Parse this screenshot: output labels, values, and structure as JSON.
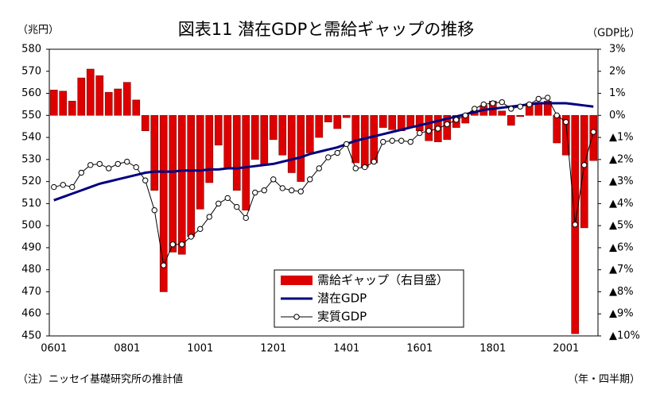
{
  "chart_data": {
    "type": "bar-line",
    "title": "図表11 潜在GDPと需給ギャップの推移",
    "y_label": "（兆円）",
    "y2_label": "（GDP比）",
    "note": "（注）ニッセイ基礎研究所の推計値",
    "x_label": "（年・四半期）",
    "categories": [
      "0601",
      null,
      null,
      null,
      null,
      null,
      null,
      null,
      "0801",
      null,
      null,
      null,
      null,
      null,
      null,
      null,
      "1001",
      null,
      null,
      null,
      null,
      null,
      null,
      null,
      "1201",
      null,
      null,
      null,
      null,
      null,
      null,
      null,
      "1401",
      null,
      null,
      null,
      null,
      null,
      null,
      null,
      "1601",
      null,
      null,
      null,
      null,
      null,
      null,
      null,
      "1801",
      null,
      null,
      null,
      null,
      null,
      null,
      null,
      "2001",
      null,
      null,
      null
    ],
    "ylim": [
      450,
      580
    ],
    "yticks": [
      450,
      460,
      470,
      480,
      490,
      500,
      510,
      520,
      530,
      540,
      550,
      560,
      570,
      580
    ],
    "y2lim": [
      -10,
      3
    ],
    "y2ticks": [
      {
        "value": -10,
        "label": "▲10%"
      },
      {
        "value": -9,
        "label": "▲9%"
      },
      {
        "value": -8,
        "label": "▲8%"
      },
      {
        "value": -7,
        "label": "▲7%"
      },
      {
        "value": -6,
        "label": "▲6%"
      },
      {
        "value": -5,
        "label": "▲5%"
      },
      {
        "value": -4,
        "label": "▲4%"
      },
      {
        "value": -3,
        "label": "▲3%"
      },
      {
        "value": -2,
        "label": "▲2%"
      },
      {
        "value": -1,
        "label": "▲1%"
      },
      {
        "value": 0,
        "label": "0%"
      },
      {
        "value": 1,
        "label": "1%"
      },
      {
        "value": 2,
        "label": "2%"
      },
      {
        "value": 3,
        "label": "3%"
      }
    ],
    "series": [
      {
        "name": "需給ギャップ（右目盛）",
        "type": "bar",
        "axis": "y2",
        "color": "#dd0000",
        "values": [
          1.15,
          1.1,
          0.65,
          1.7,
          2.1,
          1.8,
          1.05,
          1.2,
          1.5,
          0.7,
          -0.7,
          -3.4,
          -8.0,
          -6.2,
          -6.3,
          -5.5,
          -4.25,
          -3.05,
          -1.35,
          -2.35,
          -3.4,
          -4.3,
          -2.0,
          -2.25,
          -1.1,
          -1.8,
          -2.6,
          -3.0,
          -1.7,
          -1.0,
          -0.3,
          -0.6,
          -0.1,
          -2.15,
          -2.35,
          -2.15,
          -0.55,
          -0.65,
          -0.7,
          -0.55,
          -0.7,
          -1.15,
          -1.2,
          -1.1,
          -0.55,
          -0.35,
          0.2,
          0.45,
          0.65,
          0.2,
          -0.45,
          -0.05,
          0.55,
          0.6,
          0.65,
          -1.25,
          -1.8,
          -9.9,
          -5.1,
          -2.05
        ]
      },
      {
        "name": "潜在GDP",
        "type": "line",
        "color": "#000080",
        "values": [
          511.5,
          513,
          514.5,
          516,
          517.5,
          519,
          520,
          521,
          522,
          523,
          524,
          524.5,
          524.5,
          524.5,
          525,
          525,
          525,
          525.5,
          525.5,
          526,
          526,
          526.5,
          527,
          527.5,
          528,
          529,
          530,
          531,
          532.5,
          533.5,
          534.5,
          535.5,
          537,
          538.5,
          539.5,
          540.5,
          541.5,
          542.5,
          543.5,
          544.5,
          545.5,
          546.5,
          547.5,
          548.5,
          549.5,
          550.5,
          551.5,
          552.5,
          553,
          553.5,
          554,
          554.5,
          555,
          555.5,
          555.5,
          555.5,
          555.5,
          555,
          554.5,
          554
        ]
      },
      {
        "name": "実質GDP",
        "type": "line-marker",
        "color": "#000000",
        "values": [
          517.5,
          518.5,
          517.5,
          524,
          527.5,
          528,
          526,
          528,
          529,
          526.5,
          520.5,
          507,
          482,
          491.5,
          491.5,
          495,
          498.5,
          504,
          510,
          512.5,
          508.5,
          503.5,
          515,
          516,
          521,
          517,
          516,
          515.5,
          521,
          526,
          531,
          533,
          537,
          526,
          526.5,
          529,
          538,
          538.5,
          538.5,
          538,
          542,
          543,
          544,
          546,
          548,
          550,
          553,
          555,
          555.5,
          556,
          553,
          554,
          555,
          557.5,
          558,
          550,
          547,
          500.5,
          527.5,
          542.5
        ]
      }
    ]
  }
}
